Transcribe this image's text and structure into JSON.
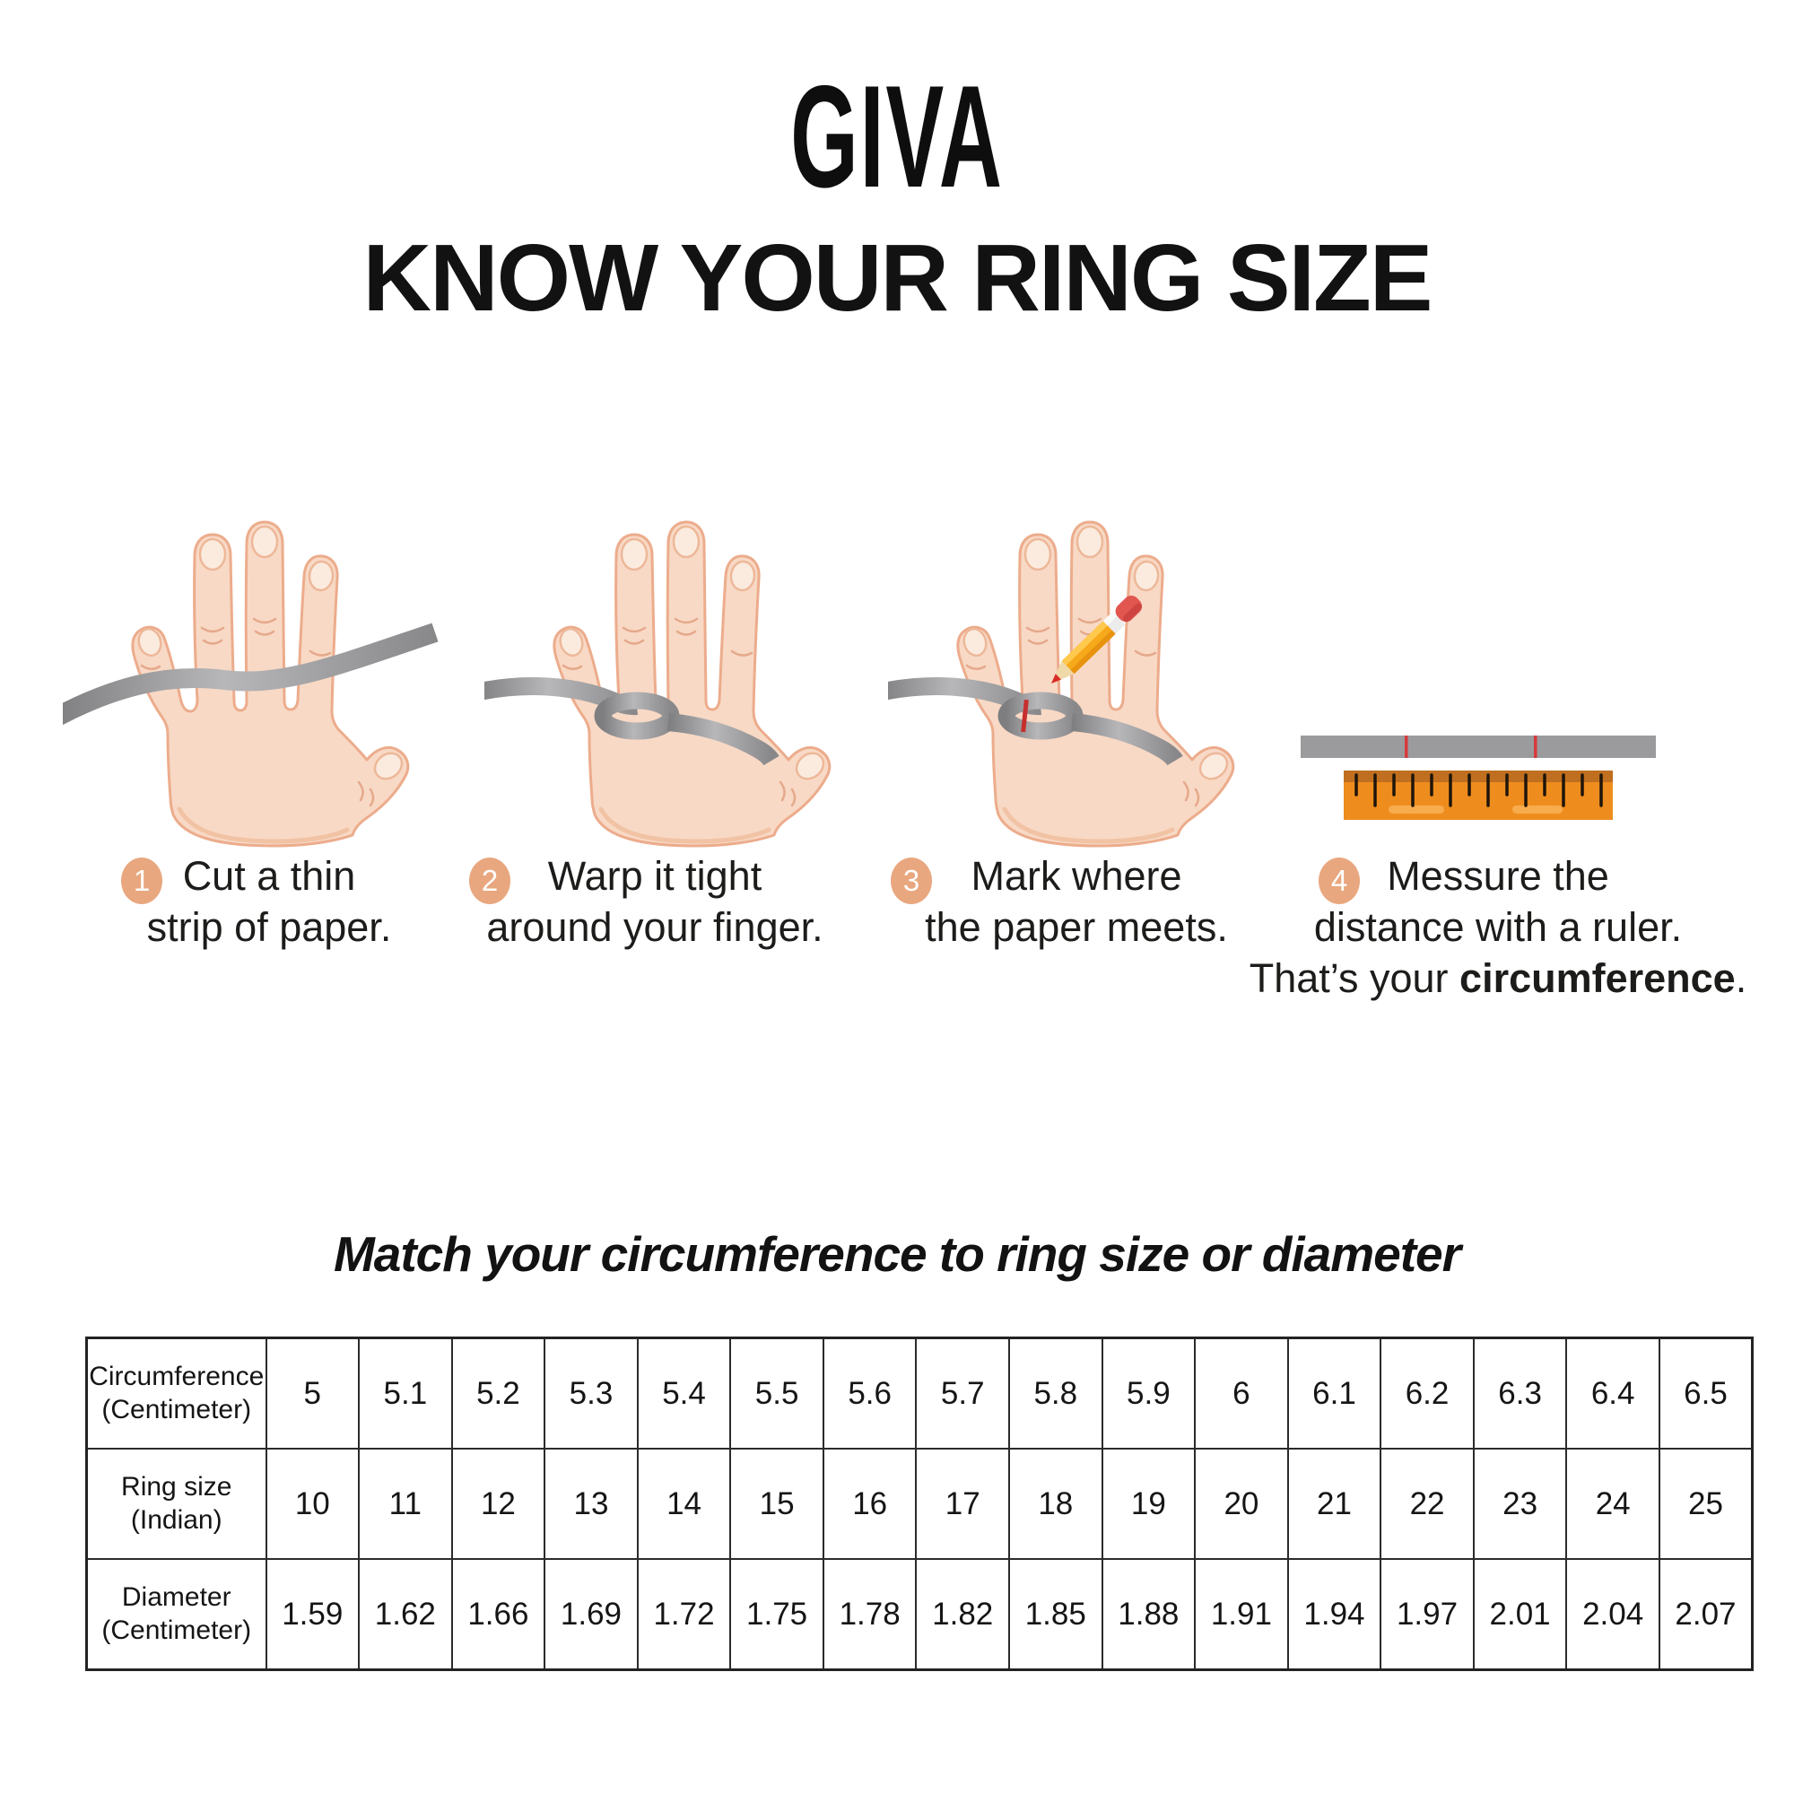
{
  "logo": {
    "text": "GIVA"
  },
  "title": "KNOW YOUR RING SIZE",
  "steps": [
    {
      "number": "1",
      "line1": "Cut a thin",
      "line2": "strip of paper."
    },
    {
      "number": "2",
      "line1": "Warp it tight",
      "line2": "around your finger."
    },
    {
      "number": "3",
      "line1": "Mark where",
      "line2": "the paper meets."
    },
    {
      "number": "4",
      "line1": "Messure the",
      "line2": "distance with a ruler.",
      "line3_prefix": "That’s your ",
      "line3_bold": "circumference",
      "line3_suffix": "."
    }
  ],
  "icons": {
    "step1": "hand-with-paper-strip-icon",
    "step2": "hand-strip-wrapped-icon",
    "step3": "hand-pencil-mark-icon",
    "step4": "ruler-icon"
  },
  "subtitle": "Match your circumference to ring size or diameter",
  "table": {
    "rows": [
      {
        "label": [
          "Circumference",
          "(Centimeter)"
        ],
        "values": [
          "5",
          "5.1",
          "5.2",
          "5.3",
          "5.4",
          "5.5",
          "5.6",
          "5.7",
          "5.8",
          "5.9",
          "6",
          "6.1",
          "6.2",
          "6.3",
          "6.4",
          "6.5"
        ]
      },
      {
        "label": [
          "Ring size",
          "(Indian)"
        ],
        "values": [
          "10",
          "11",
          "12",
          "13",
          "14",
          "15",
          "16",
          "17",
          "18",
          "19",
          "20",
          "21",
          "22",
          "23",
          "24",
          "25"
        ]
      },
      {
        "label": [
          "Diameter",
          "(Centimeter)"
        ],
        "values": [
          "1.59",
          "1.62",
          "1.66",
          "1.69",
          "1.72",
          "1.75",
          "1.78",
          "1.82",
          "1.85",
          "1.88",
          "1.91",
          "1.94",
          "1.97",
          "2.01",
          "2.04",
          "2.07"
        ]
      }
    ]
  },
  "colors": {
    "badge": "#E9A77F",
    "skin": "#F8D9C5",
    "skin_outline": "#ECAC8C",
    "strip_gray": "#9A9A9C",
    "ruler_orange": "#EE8D1E",
    "mark_red": "#D63A3A"
  }
}
